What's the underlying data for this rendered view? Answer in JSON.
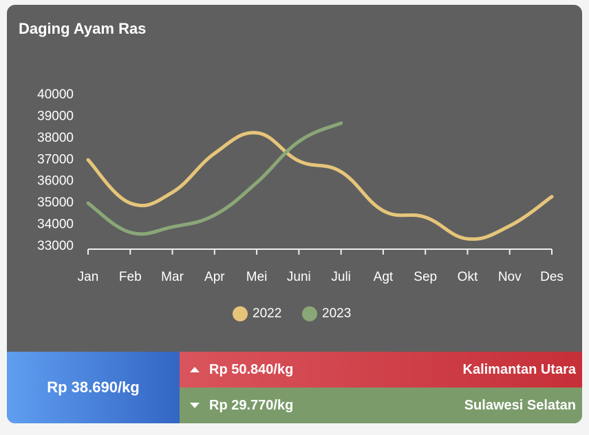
{
  "chart_data": {
    "type": "line",
    "title": "Daging Ayam Ras",
    "categories": [
      "Jan",
      "Feb",
      "Mar",
      "Apr",
      "Mei",
      "Juni",
      "Juli",
      "Agt",
      "Sep",
      "Okt",
      "Nov",
      "Des"
    ],
    "series": [
      {
        "name": "2022",
        "color": "#e6c57a",
        "values": [
          37000,
          35000,
          35500,
          37300,
          38250,
          36950,
          36450,
          34650,
          34350,
          33350,
          33950,
          35300
        ]
      },
      {
        "name": "2023",
        "color": "#8aa777",
        "values": [
          35000,
          33650,
          33900,
          34450,
          35950,
          37850,
          38700,
          null,
          null,
          null,
          null,
          null
        ]
      }
    ],
    "ylim": [
      33000,
      40000
    ],
    "yticks": [
      33000,
      34000,
      35000,
      36000,
      37000,
      38000,
      39000,
      40000
    ],
    "grid": false,
    "legend": "bottom"
  },
  "summary": {
    "average": "Rp 38.690/kg",
    "highest": {
      "price": "Rp 50.840/kg",
      "region": "Kalimantan Utara"
    },
    "lowest": {
      "price": "Rp 29.770/kg",
      "region": "Sulawesi Selatan"
    }
  }
}
